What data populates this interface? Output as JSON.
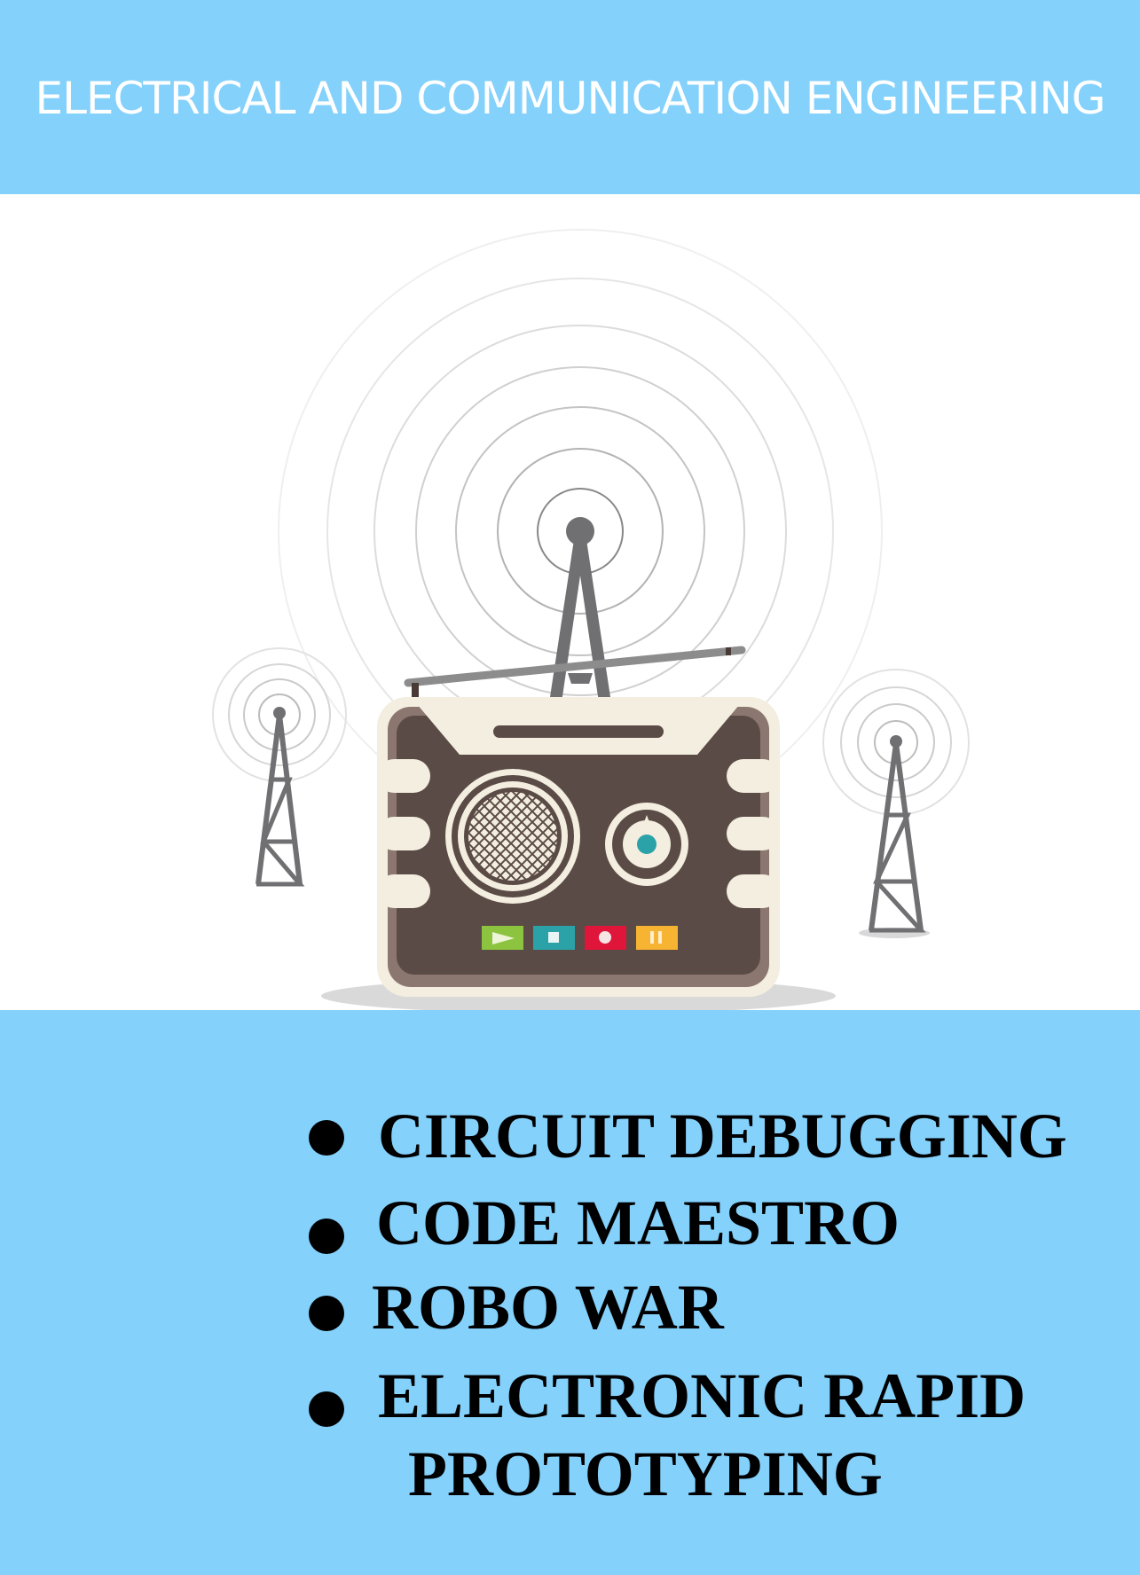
{
  "header": {
    "title": "ELECTRICAL AND COMMUNICATION ENGINEERING",
    "background_color": "#84d1fb",
    "text_color": "#ffffff"
  },
  "illustration": {
    "icons": [
      "radio-icon",
      "radio-tower-icon",
      "signal-waves-icon",
      "antenna-icon",
      "play-icon",
      "stop-icon",
      "record-icon",
      "pause-icon",
      "speaker-grille-icon",
      "tuning-knob-icon"
    ]
  },
  "events": {
    "background_color": "#84d1fb",
    "items": [
      {
        "label": "CIRCUIT DEBUGGING"
      },
      {
        "label": "CODE MAESTRO"
      },
      {
        "label": "ROBO WAR"
      },
      {
        "label": "ELECTRONIC RAPID",
        "label_line2": "PROTOTYPING"
      }
    ]
  }
}
